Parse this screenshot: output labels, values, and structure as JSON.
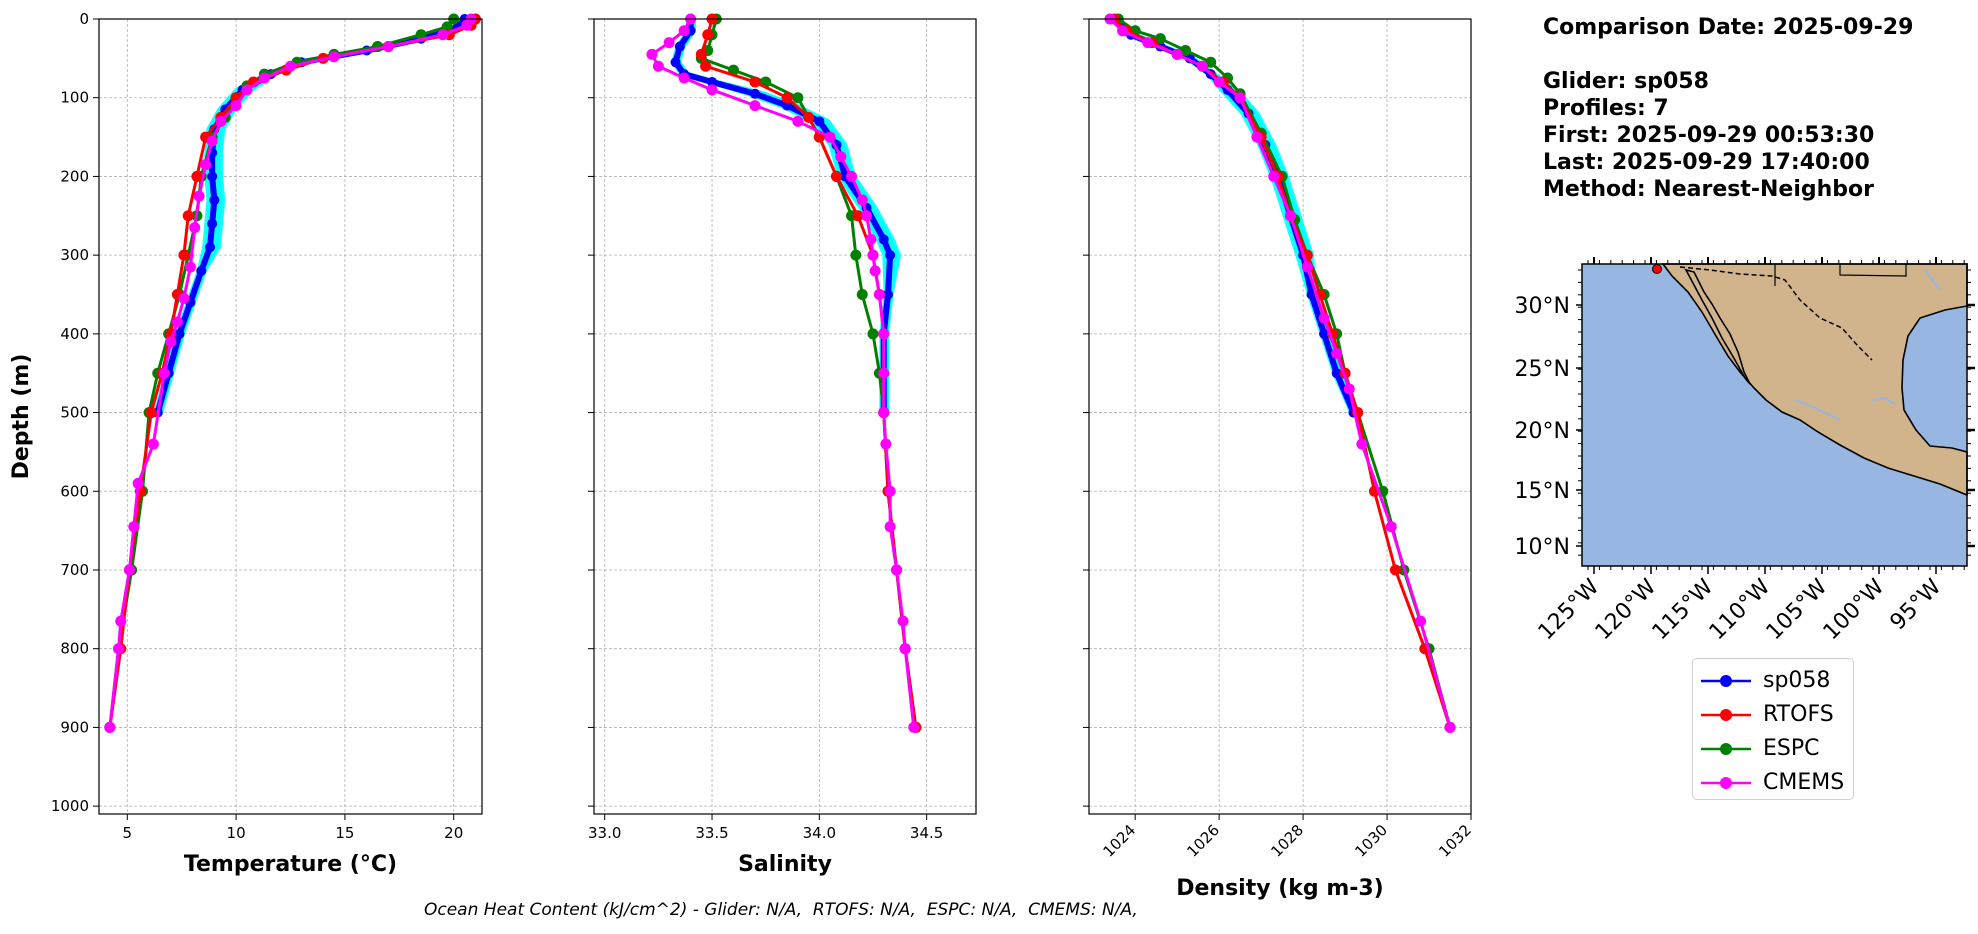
{
  "info": {
    "comparison_date": "Comparison Date: 2025-09-29",
    "glider": "Glider: sp058",
    "profiles": "Profiles: 7",
    "first": "First: 2025-09-29 00:53:30",
    "last": "Last: 2025-09-29 17:40:00",
    "method": "Method: Nearest-Neighbor"
  },
  "footer": {
    "ohc": "Ocean Heat Content (kJ/cm^2) - Glider: N/A,  RTOFS: N/A,  ESPC: N/A,  CMEMS: N/A,"
  },
  "legend": [
    {
      "name": "sp058",
      "color": "#0000ff"
    },
    {
      "name": "RTOFS",
      "color": "#ff0000"
    },
    {
      "name": "ESPC",
      "color": "#008000"
    },
    {
      "name": "CMEMS",
      "color": "#ff00ff"
    }
  ],
  "colors": {
    "glider_profiles": "#00ffff",
    "ocean": "#97b6e1",
    "land": "#d2b48c",
    "glider_marker": "#ff0000",
    "grid": "#b0b0b0"
  },
  "map": {
    "lat_ticks": [
      "30°N",
      "25°N",
      "20°N",
      "15°N",
      "10°N"
    ],
    "lon_ticks": [
      "125°W",
      "120°W",
      "115°W",
      "110°W",
      "105°W",
      "100°W",
      "95°W"
    ]
  },
  "chart_data": [
    {
      "type": "line",
      "xlabel": "Temperature (°C)",
      "ylabel": "Depth (m)",
      "xlim": [
        3.7,
        21.3
      ],
      "ylim": [
        1010,
        0
      ],
      "xticks": [
        5,
        10,
        15,
        20
      ],
      "yticks": [
        0,
        100,
        200,
        300,
        400,
        500,
        600,
        700,
        800,
        900,
        1000
      ],
      "grid": true,
      "series": [
        {
          "name": "sp058",
          "points": [
            [
              20.5,
              0
            ],
            [
              20.2,
              10
            ],
            [
              18.5,
              25
            ],
            [
              16,
              40
            ],
            [
              13,
              55
            ],
            [
              11.6,
              70
            ],
            [
              10.3,
              90
            ],
            [
              9.5,
              115
            ],
            [
              9,
              140
            ],
            [
              8.9,
              170
            ],
            [
              8.9,
              200
            ],
            [
              9,
              230
            ],
            [
              8.9,
              260
            ],
            [
              8.8,
              290
            ],
            [
              8.4,
              320
            ],
            [
              7.9,
              360
            ],
            [
              7.4,
              400
            ],
            [
              6.9,
              450
            ],
            [
              6.4,
              500
            ]
          ]
        },
        {
          "name": "RTOFS",
          "points": [
            [
              21,
              0
            ],
            [
              20.8,
              8
            ],
            [
              19.8,
              20
            ],
            [
              17,
              35
            ],
            [
              14,
              50
            ],
            [
              12.3,
              65
            ],
            [
              10.8,
              80
            ],
            [
              10,
              100
            ],
            [
              9.3,
              125
            ],
            [
              8.6,
              150
            ],
            [
              8.2,
              200
            ],
            [
              7.8,
              250
            ],
            [
              7.6,
              300
            ],
            [
              7.3,
              350
            ],
            [
              7,
              400
            ],
            [
              6.6,
              450
            ],
            [
              6.1,
              500
            ],
            [
              5.6,
              600
            ],
            [
              5.1,
              700
            ],
            [
              4.7,
              800
            ],
            [
              4.2,
              900
            ]
          ]
        },
        {
          "name": "ESPC",
          "points": [
            [
              20,
              0
            ],
            [
              19.7,
              10
            ],
            [
              18.5,
              20
            ],
            [
              16.5,
              35
            ],
            [
              14.5,
              45
            ],
            [
              12.8,
              55
            ],
            [
              11.3,
              70
            ],
            [
              10.5,
              85
            ],
            [
              10,
              100
            ],
            [
              9.5,
              125
            ],
            [
              8.9,
              150
            ],
            [
              8.4,
              200
            ],
            [
              8.2,
              250
            ],
            [
              7.8,
              300
            ],
            [
              7.4,
              350
            ],
            [
              6.9,
              400
            ],
            [
              6.4,
              450
            ],
            [
              6,
              500
            ],
            [
              5.7,
              600
            ],
            [
              5.2,
              700
            ],
            [
              4.6,
              800
            ],
            [
              4.2,
              900
            ]
          ]
        },
        {
          "name": "CMEMS",
          "points": [
            [
              20.8,
              0
            ],
            [
              20.6,
              8
            ],
            [
              19.5,
              20
            ],
            [
              17,
              35
            ],
            [
              14.5,
              48
            ],
            [
              12.5,
              60
            ],
            [
              11.3,
              75
            ],
            [
              10.5,
              90
            ],
            [
              10,
              110
            ],
            [
              9.3,
              130
            ],
            [
              8.9,
              155
            ],
            [
              8.6,
              185
            ],
            [
              8.3,
              225
            ],
            [
              8.1,
              265
            ],
            [
              7.9,
              315
            ],
            [
              7.6,
              355
            ],
            [
              7.3,
              385
            ],
            [
              7,
              410
            ],
            [
              6.7,
              450
            ],
            [
              6.2,
              540
            ],
            [
              5.5,
              590
            ],
            [
              5.3,
              645
            ],
            [
              5.1,
              700
            ],
            [
              4.7,
              765
            ],
            [
              4.6,
              800
            ],
            [
              4.2,
              900
            ]
          ]
        }
      ]
    },
    {
      "type": "line",
      "xlabel": "Salinity",
      "xlim": [
        32.95,
        34.73
      ],
      "ylim": [
        1010,
        0
      ],
      "xticks": [
        33.0,
        33.5,
        34.0,
        34.5
      ],
      "grid": true,
      "series": [
        {
          "name": "sp058",
          "points": [
            [
              33.4,
              0
            ],
            [
              33.4,
              15
            ],
            [
              33.35,
              35
            ],
            [
              33.33,
              55
            ],
            [
              33.37,
              70
            ],
            [
              33.5,
              80
            ],
            [
              33.7,
              95
            ],
            [
              33.85,
              110
            ],
            [
              34,
              130
            ],
            [
              34.08,
              160
            ],
            [
              34.12,
              200
            ],
            [
              34.22,
              240
            ],
            [
              34.3,
              280
            ],
            [
              34.33,
              300
            ],
            [
              34.32,
              350
            ],
            [
              34.3,
              400
            ],
            [
              34.3,
              450
            ],
            [
              34.3,
              500
            ]
          ]
        },
        {
          "name": "RTOFS",
          "points": [
            [
              33.5,
              0
            ],
            [
              33.48,
              20
            ],
            [
              33.45,
              45
            ],
            [
              33.47,
              60
            ],
            [
              33.7,
              80
            ],
            [
              33.85,
              100
            ],
            [
              33.95,
              125
            ],
            [
              34,
              150
            ],
            [
              34.08,
              200
            ],
            [
              34.18,
              250
            ],
            [
              34.25,
              300
            ],
            [
              34.28,
              350
            ],
            [
              34.3,
              400
            ],
            [
              34.3,
              450
            ],
            [
              34.3,
              500
            ],
            [
              34.32,
              600
            ],
            [
              34.36,
              700
            ],
            [
              34.4,
              800
            ],
            [
              34.45,
              900
            ]
          ]
        },
        {
          "name": "ESPC",
          "points": [
            [
              33.52,
              0
            ],
            [
              33.5,
              20
            ],
            [
              33.48,
              40
            ],
            [
              33.45,
              50
            ],
            [
              33.6,
              65
            ],
            [
              33.75,
              80
            ],
            [
              33.9,
              100
            ],
            [
              34,
              150
            ],
            [
              34.08,
              200
            ],
            [
              34.15,
              250
            ],
            [
              34.17,
              300
            ],
            [
              34.2,
              350
            ],
            [
              34.25,
              400
            ],
            [
              34.28,
              450
            ],
            [
              34.3,
              500
            ],
            [
              34.32,
              600
            ],
            [
              34.36,
              700
            ],
            [
              34.4,
              800
            ],
            [
              34.45,
              900
            ]
          ]
        },
        {
          "name": "CMEMS",
          "points": [
            [
              33.4,
              0
            ],
            [
              33.37,
              15
            ],
            [
              33.3,
              30
            ],
            [
              33.22,
              45
            ],
            [
              33.25,
              60
            ],
            [
              33.37,
              75
            ],
            [
              33.5,
              90
            ],
            [
              33.7,
              110
            ],
            [
              33.9,
              130
            ],
            [
              34.05,
              150
            ],
            [
              34.1,
              175
            ],
            [
              34.15,
              200
            ],
            [
              34.2,
              230
            ],
            [
              34.22,
              250
            ],
            [
              34.24,
              280
            ],
            [
              34.25,
              300
            ],
            [
              34.26,
              320
            ],
            [
              34.28,
              350
            ],
            [
              34.3,
              400
            ],
            [
              34.3,
              450
            ],
            [
              34.3,
              500
            ],
            [
              34.31,
              540
            ],
            [
              34.33,
              600
            ],
            [
              34.33,
              645
            ],
            [
              34.36,
              700
            ],
            [
              34.39,
              765
            ],
            [
              34.4,
              800
            ],
            [
              34.44,
              900
            ]
          ]
        }
      ]
    },
    {
      "type": "line",
      "xlabel": "Density (kg m-3)",
      "xlim": [
        1022.9,
        1032.0
      ],
      "ylim": [
        1010,
        0
      ],
      "xticks": [
        1024,
        1026,
        1028,
        1030,
        1032
      ],
      "grid": true,
      "series": [
        {
          "name": "sp058",
          "points": [
            [
              1023.5,
              0
            ],
            [
              1023.9,
              20
            ],
            [
              1024.6,
              35
            ],
            [
              1025.3,
              50
            ],
            [
              1025.8,
              70
            ],
            [
              1026.2,
              90
            ],
            [
              1026.7,
              120
            ],
            [
              1027.1,
              160
            ],
            [
              1027.4,
              200
            ],
            [
              1027.7,
              250
            ],
            [
              1028,
              300
            ],
            [
              1028.2,
              350
            ],
            [
              1028.5,
              400
            ],
            [
              1028.8,
              450
            ],
            [
              1029.2,
              500
            ]
          ]
        },
        {
          "name": "RTOFS",
          "points": [
            [
              1023.5,
              0
            ],
            [
              1023.8,
              15
            ],
            [
              1024.4,
              30
            ],
            [
              1025,
              45
            ],
            [
              1025.6,
              60
            ],
            [
              1026.1,
              80
            ],
            [
              1026.5,
              100
            ],
            [
              1027,
              150
            ],
            [
              1027.4,
              200
            ],
            [
              1027.7,
              250
            ],
            [
              1028.1,
              300
            ],
            [
              1028.4,
              350
            ],
            [
              1028.7,
              400
            ],
            [
              1029,
              450
            ],
            [
              1029.3,
              500
            ],
            [
              1029.7,
              600
            ],
            [
              1030.2,
              700
            ],
            [
              1030.9,
              800
            ],
            [
              1031.5,
              900
            ]
          ]
        },
        {
          "name": "ESPC",
          "points": [
            [
              1023.6,
              0
            ],
            [
              1024,
              15
            ],
            [
              1024.6,
              25
            ],
            [
              1025.2,
              40
            ],
            [
              1025.8,
              55
            ],
            [
              1026.2,
              75
            ],
            [
              1026.5,
              95
            ],
            [
              1027,
              145
            ],
            [
              1027.5,
              200
            ],
            [
              1027.8,
              255
            ],
            [
              1028.1,
              300
            ],
            [
              1028.5,
              350
            ],
            [
              1028.8,
              400
            ],
            [
              1029,
              450
            ],
            [
              1029.3,
              500
            ],
            [
              1029.9,
              600
            ],
            [
              1030.4,
              700
            ],
            [
              1031,
              800
            ],
            [
              1031.5,
              900
            ]
          ]
        },
        {
          "name": "CMEMS",
          "points": [
            [
              1023.4,
              0
            ],
            [
              1023.7,
              15
            ],
            [
              1024.3,
              30
            ],
            [
              1025,
              45
            ],
            [
              1025.6,
              60
            ],
            [
              1026,
              80
            ],
            [
              1026.5,
              100
            ],
            [
              1026.9,
              150
            ],
            [
              1027.3,
              200
            ],
            [
              1027.7,
              250
            ],
            [
              1028.1,
              315
            ],
            [
              1028.5,
              380
            ],
            [
              1028.8,
              425
            ],
            [
              1029.1,
              470
            ],
            [
              1029.4,
              540
            ],
            [
              1030.1,
              645
            ],
            [
              1030.8,
              765
            ],
            [
              1031.5,
              900
            ]
          ]
        }
      ]
    }
  ]
}
